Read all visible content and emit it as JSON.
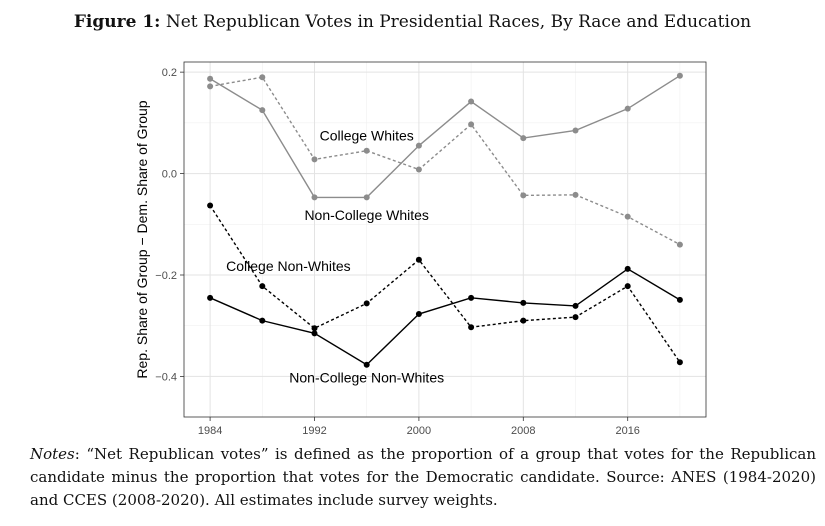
{
  "figure": {
    "label": "Figure 1:",
    "title": "Net Republican Votes in Presidential Races, By Race and Education"
  },
  "notes": {
    "label": "Notes",
    "text": ": “Net Republican votes” is defined as the proportion of a group that votes for the Republican candidate minus the proportion that votes for the Democratic candidate. Source: ANES (1984-2020) and CCES (2008-2020). All estimates include survey weights."
  },
  "chart_data": {
    "type": "line",
    "title": "",
    "xlabel": "",
    "ylabel": "Rep. Share of Group − Dem. Share of Group",
    "xlim": [
      1982,
      2022
    ],
    "ylim": [
      -0.48,
      0.22
    ],
    "x_ticks": [
      1984,
      1992,
      2000,
      2008,
      2016
    ],
    "y_ticks": [
      0.2,
      0.0,
      -0.2,
      -0.4
    ],
    "y_tick_labels": [
      "0.2",
      "0.0",
      "−0.2",
      "−0.4"
    ],
    "grid": true,
    "x": [
      1984,
      1988,
      1992,
      1996,
      2000,
      2004,
      2008,
      2012,
      2016,
      2020
    ],
    "series": [
      {
        "name": "College Whites",
        "color": "#8c8c8c",
        "dash": "dotted",
        "values": [
          0.172,
          0.19,
          0.028,
          0.045,
          0.008,
          0.097,
          -0.043,
          -0.042,
          -0.085,
          -0.14
        ],
        "label_pos": [
          1996,
          0.075
        ]
      },
      {
        "name": "Non-College Whites",
        "color": "#8c8c8c",
        "dash": "solid",
        "values": [
          0.187,
          0.125,
          -0.047,
          -0.047,
          0.055,
          0.142,
          0.07,
          0.085,
          0.128,
          0.193
        ],
        "label_pos": [
          1996,
          -0.082
        ]
      },
      {
        "name": "College Non-Whites",
        "color": "#000000",
        "dash": "dotted",
        "values": [
          -0.063,
          -0.222,
          -0.305,
          -0.256,
          -0.17,
          -0.303,
          -0.29,
          -0.283,
          -0.222,
          -0.372
        ],
        "label_pos": [
          1990,
          -0.182
        ]
      },
      {
        "name": "Non-College Non-Whites",
        "color": "#000000",
        "dash": "solid",
        "values": [
          -0.245,
          -0.29,
          -0.315,
          -0.377,
          -0.277,
          -0.245,
          -0.255,
          -0.261,
          -0.188,
          -0.249
        ],
        "label_pos": [
          1996,
          -0.402
        ]
      }
    ]
  }
}
